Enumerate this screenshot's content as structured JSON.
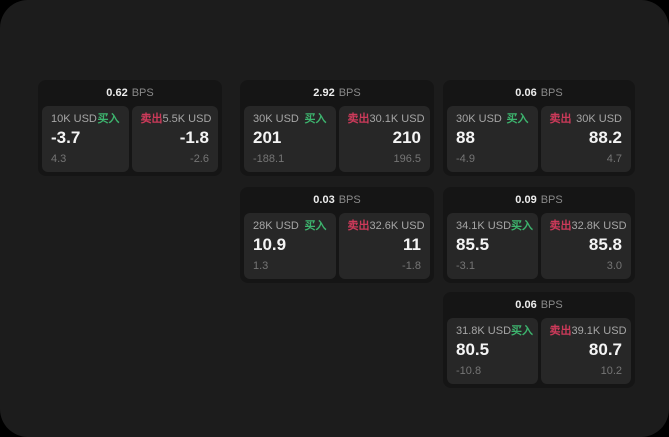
{
  "labels": {
    "bps_unit": "BPS",
    "buy": "买入",
    "sell": "卖出"
  },
  "colors": {
    "page_background": "#1c1c1c",
    "card_background": "#151515",
    "panel_background": "#272727",
    "buy_accent": "#3db46e",
    "sell_accent": "#cc3a5a"
  },
  "cards": [
    {
      "bps": "0.62",
      "buy": {
        "size": "10K USD",
        "value": "-3.7",
        "sub": "4.3"
      },
      "sell": {
        "size": "5.5K USD",
        "value": "-1.8",
        "sub": "-2.6"
      }
    },
    {
      "bps": "2.92",
      "buy": {
        "size": "30K USD",
        "value": "201",
        "sub": "-188.1"
      },
      "sell": {
        "size": "30.1K USD",
        "value": "210",
        "sub": "196.5"
      }
    },
    {
      "bps": "0.06",
      "buy": {
        "size": "30K USD",
        "value": "88",
        "sub": "-4.9"
      },
      "sell": {
        "size": "30K USD",
        "value": "88.2",
        "sub": "4.7"
      }
    },
    {
      "bps": "0.03",
      "buy": {
        "size": "28K USD",
        "value": "10.9",
        "sub": "1.3"
      },
      "sell": {
        "size": "32.6K USD",
        "value": "11",
        "sub": "-1.8"
      }
    },
    {
      "bps": "0.09",
      "buy": {
        "size": "34.1K USD",
        "value": "85.5",
        "sub": "-3.1"
      },
      "sell": {
        "size": "32.8K USD",
        "value": "85.8",
        "sub": "3.0"
      }
    },
    {
      "bps": "0.06",
      "buy": {
        "size": "31.8K USD",
        "value": "80.5",
        "sub": "-10.8"
      },
      "sell": {
        "size": "39.1K USD",
        "value": "80.7",
        "sub": "10.2"
      }
    }
  ]
}
